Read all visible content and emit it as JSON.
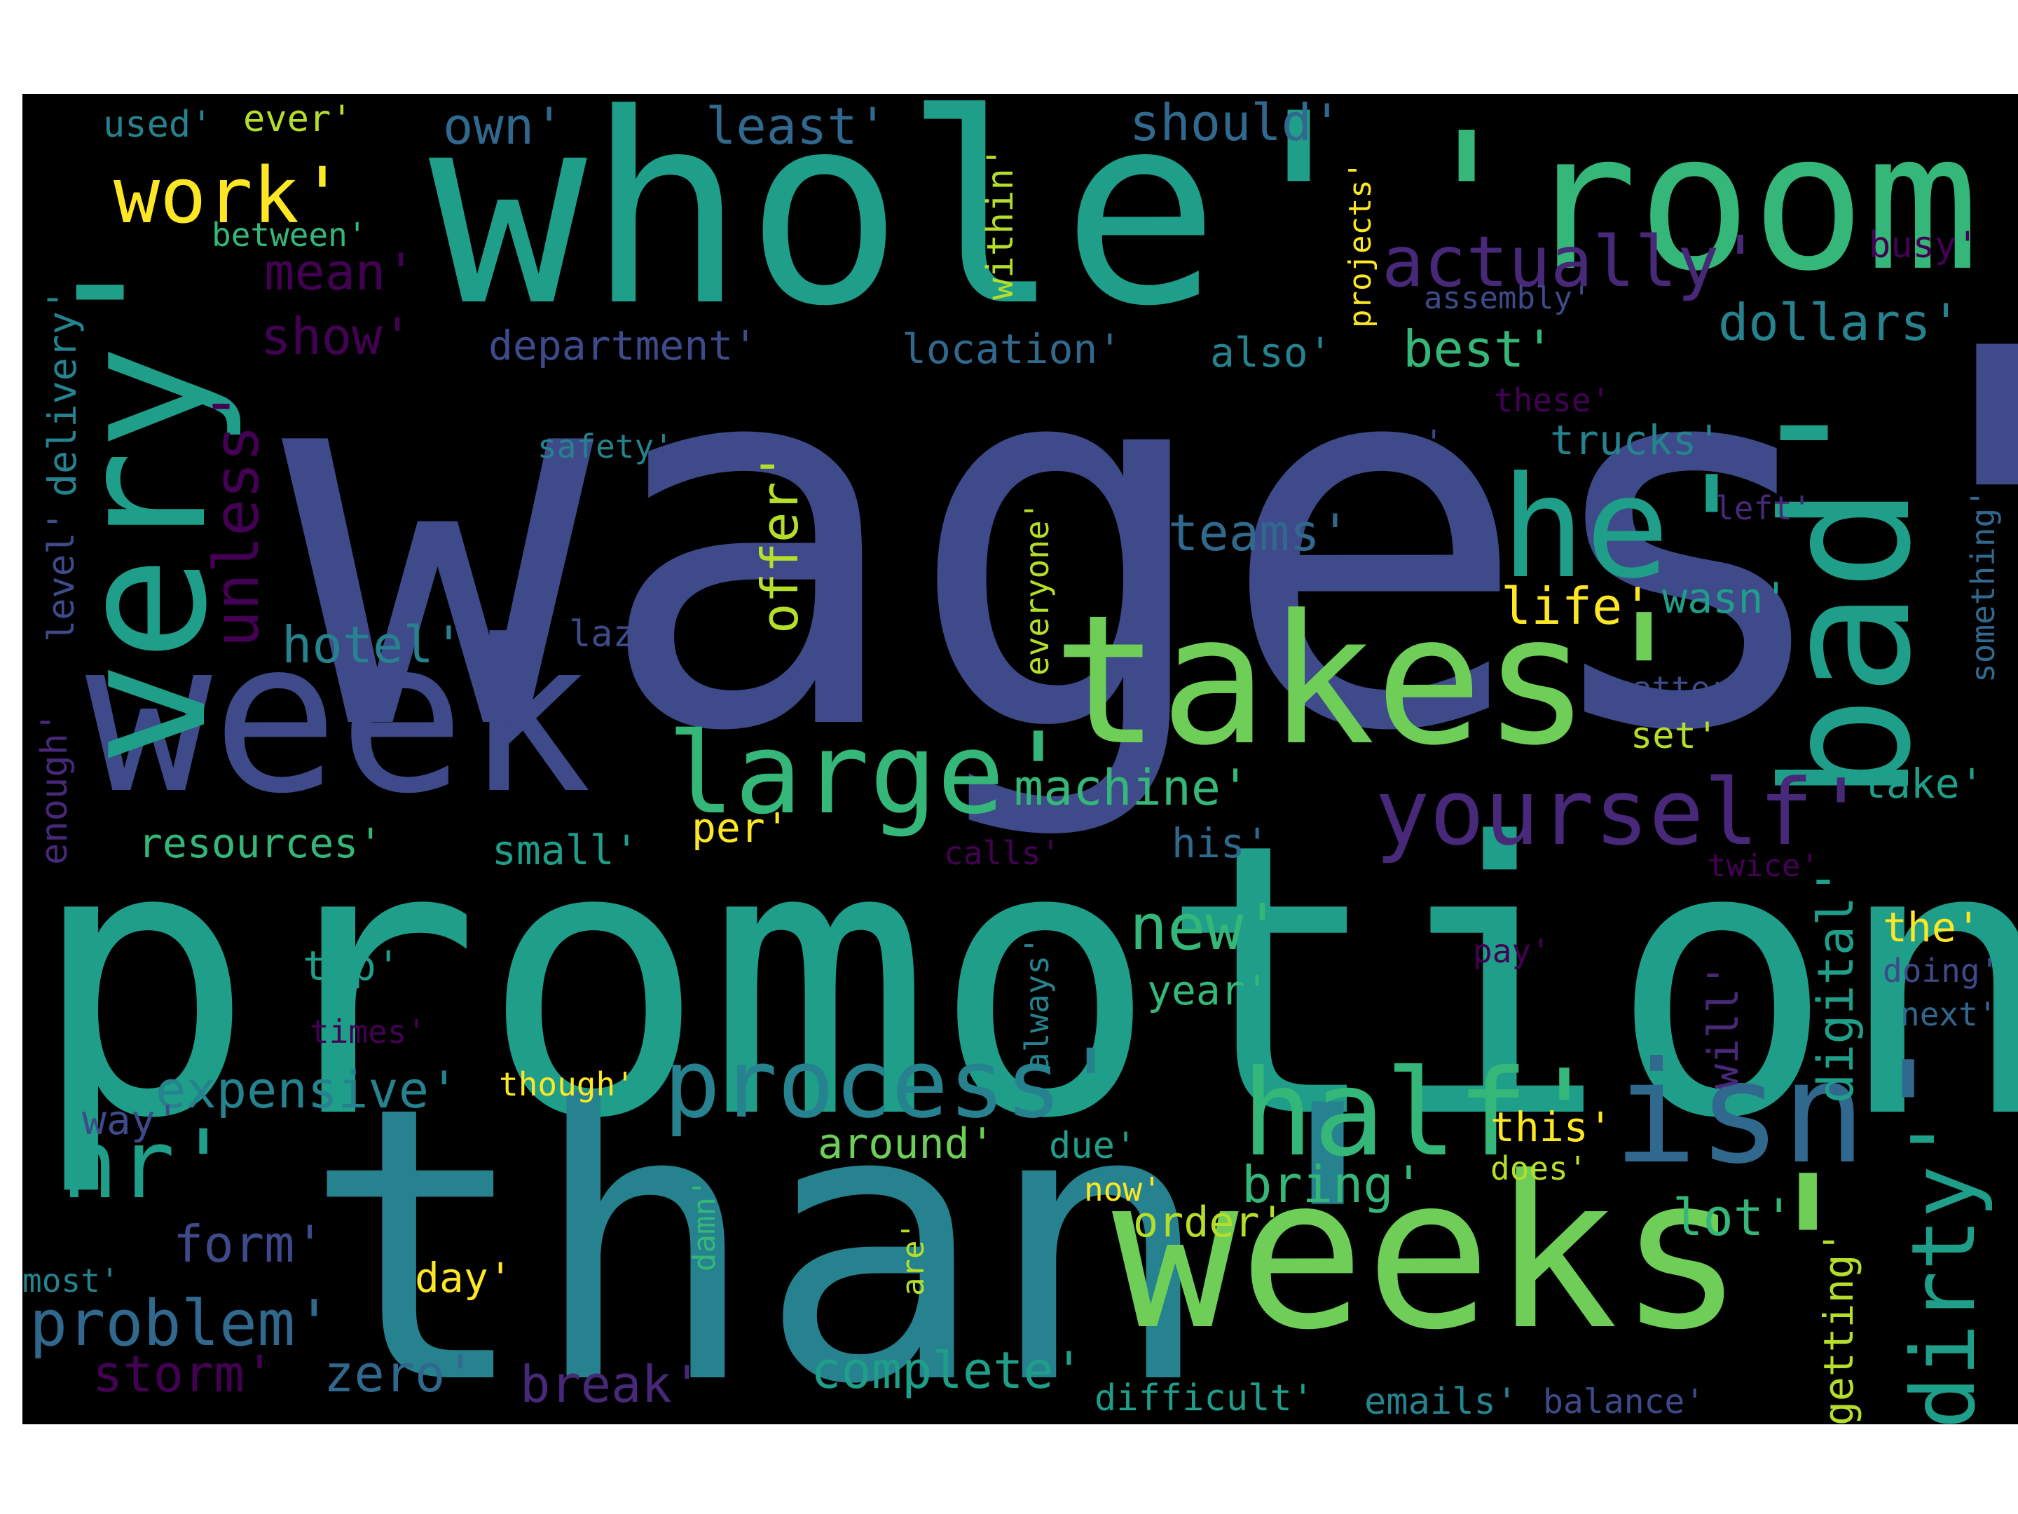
{
  "colors": {
    "page_background": "#ffffff",
    "cloud_background": "#000000",
    "palette": [
      "#440154",
      "#482878",
      "#3e4a89",
      "#31688e",
      "#26828e",
      "#1f9e89",
      "#35b779",
      "#6ece58",
      "#b5de2b",
      "#fde725"
    ]
  },
  "words": {
    "wages": "wages'",
    "promotion": "promotion'",
    "than": "than'",
    "whole": "whole'",
    "room": "'room'",
    "very": "very'",
    "bad": "bad'",
    "week": "week'",
    "takes": "takes'",
    "weeks": "weeks'",
    "he": "he'",
    "isn": "isn'",
    "half": "half'",
    "large": "large'",
    "process": "process'",
    "yourself": "yourself'",
    "hr": "hr'",
    "dirty": "dirty'",
    "work": "work'",
    "actually": "actually'",
    "new": "new'",
    "unless": "unless'",
    "problem": "problem'",
    "machine": "machine'",
    "digital": "digital'",
    "own": "own'",
    "least": "least'",
    "should": "should'",
    "offer": "offer'",
    "dollars": "dollars'",
    "expensive": "expensive'",
    "complete": "complete'",
    "best": "best'",
    "hotel": "hotel'",
    "bring": "bring'",
    "form": "form'",
    "break": "break'",
    "zero": "zero'",
    "storm": "storm'",
    "teams": "teams'",
    "show": "show'",
    "mean": "mean'",
    "within": "within'",
    "life": "life'",
    "around": "around'",
    "lot": "lot'",
    "order": "order'",
    "wasn": "wasn'",
    "will": "will'",
    "department": "department'",
    "location": "location'",
    "resources": "resources'",
    "small": "small'",
    "getting": "getting'",
    "trucks": "trucks'",
    "delivery": "delivery'",
    "the": "the'",
    "top": "top'",
    "year": "year'",
    "this": "this'",
    "take": "take'",
    "also": "also'",
    "used": "used'",
    "ever": "ever'",
    "busy": "busy'",
    "set": "set'",
    "per": "per'",
    "day": "day'",
    "due": "due'",
    "his": "his'",
    "way": "way'",
    "difficult": "difficult'",
    "emails": "emails'",
    "balance": "balance'",
    "lazy": "lazy'",
    "enough": "enough'",
    "between": "between'",
    "safety": "safety'",
    "something": "something'",
    "assembly": "assembly'",
    "everyone": "everyone'",
    "always": "always'",
    "though": "though'",
    "projects": "projects'",
    "level": "level'",
    "now": "now'",
    "does": "does'",
    "doing": "doing'",
    "next": "next'",
    "re": "re'",
    "left": "left'",
    "these": "these'",
    "matter": "matter'",
    "calls": "calls'",
    "pay": "pay'",
    "times": "times'",
    "twice": "twice'",
    "most": "most'",
    "damn": "damn'",
    "are": "are'"
  }
}
